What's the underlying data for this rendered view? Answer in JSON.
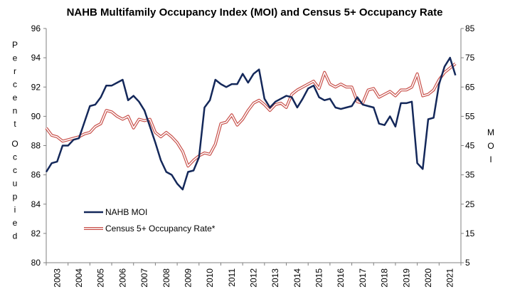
{
  "chart_data": {
    "type": "line",
    "title": "NAHB Multifamily Occupancy Index (MOI) and Census 5+ Occupancy Rate",
    "ylabel": "Percent Occupied",
    "y2label": "MOI",
    "ylim": [
      80,
      96
    ],
    "y2lim": [
      5,
      85
    ],
    "yticks": [
      "80",
      "82",
      "84",
      "86",
      "88",
      "90",
      "92",
      "94",
      "96"
    ],
    "y2ticks": [
      "5",
      "15",
      "25",
      "35",
      "45",
      "55",
      "65",
      "75",
      "85"
    ],
    "xlim": [
      2003,
      2021.75
    ],
    "xticks": [
      "2003",
      "2004",
      "2005",
      "2006",
      "2007",
      "2008",
      "2009",
      "2010",
      "2011",
      "2012",
      "2013",
      "2014",
      "2015",
      "2016",
      "2017",
      "2018",
      "2019",
      "2020",
      "2021"
    ],
    "grid": false,
    "legend": "bottom-left",
    "series": [
      {
        "name": "NAHB MOI",
        "axis": "right",
        "color": "#14285a",
        "x": [
          2003.0,
          2003.25,
          2003.5,
          2003.75,
          2004.0,
          2004.25,
          2004.5,
          2004.75,
          2005.0,
          2005.25,
          2005.5,
          2005.75,
          2006.0,
          2006.25,
          2006.5,
          2006.75,
          2007.0,
          2007.25,
          2007.5,
          2007.75,
          2008.0,
          2008.25,
          2008.5,
          2008.75,
          2009.0,
          2009.25,
          2009.5,
          2009.75,
          2010.0,
          2010.25,
          2010.5,
          2010.75,
          2011.0,
          2011.25,
          2011.5,
          2011.75,
          2012.0,
          2012.25,
          2012.5,
          2012.75,
          2013.0,
          2013.25,
          2013.5,
          2013.75,
          2014.0,
          2014.25,
          2014.5,
          2014.75,
          2015.0,
          2015.25,
          2015.5,
          2015.75,
          2016.0,
          2016.25,
          2016.5,
          2016.75,
          2017.0,
          2017.25,
          2017.5,
          2017.75,
          2018.0,
          2018.25,
          2018.5,
          2018.75,
          2019.0,
          2019.25,
          2019.5,
          2019.75,
          2020.0,
          2020.25,
          2020.5,
          2020.75,
          2021.0,
          2021.25,
          2021.5,
          2021.75
        ],
        "values": [
          36.0,
          39.0,
          39.5,
          45.0,
          45.0,
          47.0,
          47.5,
          53.0,
          58.5,
          59.0,
          61.5,
          65.5,
          65.5,
          66.5,
          67.5,
          60.5,
          62.0,
          60.0,
          57.0,
          51.5,
          46.0,
          40.0,
          36.0,
          35.0,
          32.0,
          30.0,
          36.0,
          36.5,
          41.0,
          58.0,
          60.5,
          67.5,
          66.0,
          65.0,
          66.0,
          66.0,
          69.5,
          66.5,
          69.5,
          71.0,
          61.0,
          58.0,
          60.0,
          61.0,
          62.0,
          61.5,
          58.0,
          61.0,
          64.5,
          65.5,
          61.5,
          60.5,
          61.0,
          58.0,
          57.5,
          58.0,
          58.5,
          61.5,
          59.0,
          58.5,
          58.0,
          52.5,
          52.0,
          55.0,
          51.5,
          59.5,
          59.5,
          60.0,
          39.0,
          37.0,
          54.0,
          54.5,
          66.0,
          72.0,
          75.0,
          69.0
        ]
      },
      {
        "name": "Census 5+ Occupancy Rate*",
        "axis": "left",
        "color": "#c8504a",
        "x": [
          2003.0,
          2003.25,
          2003.5,
          2003.75,
          2004.0,
          2004.25,
          2004.5,
          2004.75,
          2005.0,
          2005.25,
          2005.5,
          2005.75,
          2006.0,
          2006.25,
          2006.5,
          2006.75,
          2007.0,
          2007.25,
          2007.5,
          2007.75,
          2008.0,
          2008.25,
          2008.5,
          2008.75,
          2009.0,
          2009.25,
          2009.5,
          2009.75,
          2010.0,
          2010.25,
          2010.5,
          2010.75,
          2011.0,
          2011.25,
          2011.5,
          2011.75,
          2012.0,
          2012.25,
          2012.5,
          2012.75,
          2013.0,
          2013.25,
          2013.5,
          2013.75,
          2014.0,
          2014.25,
          2014.5,
          2014.75,
          2015.0,
          2015.25,
          2015.5,
          2015.75,
          2016.0,
          2016.25,
          2016.5,
          2016.75,
          2017.0,
          2017.25,
          2017.5,
          2017.75,
          2018.0,
          2018.25,
          2018.5,
          2018.75,
          2019.0,
          2019.25,
          2019.5,
          2019.75,
          2020.0,
          2020.25,
          2020.5,
          2020.75,
          2021.0,
          2021.25,
          2021.5,
          2021.75
        ],
        "values": [
          89.2,
          88.7,
          88.6,
          88.3,
          88.4,
          88.5,
          88.6,
          88.8,
          88.9,
          89.3,
          89.5,
          90.4,
          90.3,
          90.0,
          89.8,
          90.0,
          89.2,
          89.8,
          89.7,
          89.8,
          88.9,
          88.6,
          88.9,
          88.6,
          88.2,
          87.6,
          86.6,
          87.0,
          87.3,
          87.5,
          87.4,
          88.1,
          89.5,
          89.6,
          90.1,
          89.4,
          89.8,
          90.4,
          90.9,
          91.1,
          90.8,
          90.4,
          90.8,
          90.9,
          90.6,
          91.5,
          91.8,
          92.0,
          92.2,
          92.4,
          91.9,
          93.0,
          92.2,
          92.0,
          92.2,
          92.0,
          92.0,
          91.0,
          90.9,
          91.8,
          91.9,
          91.3,
          91.5,
          91.7,
          91.4,
          91.8,
          91.8,
          92.0,
          92.9,
          91.4,
          91.5,
          91.8,
          92.5,
          93.0,
          93.3,
          93.6
        ]
      }
    ]
  }
}
